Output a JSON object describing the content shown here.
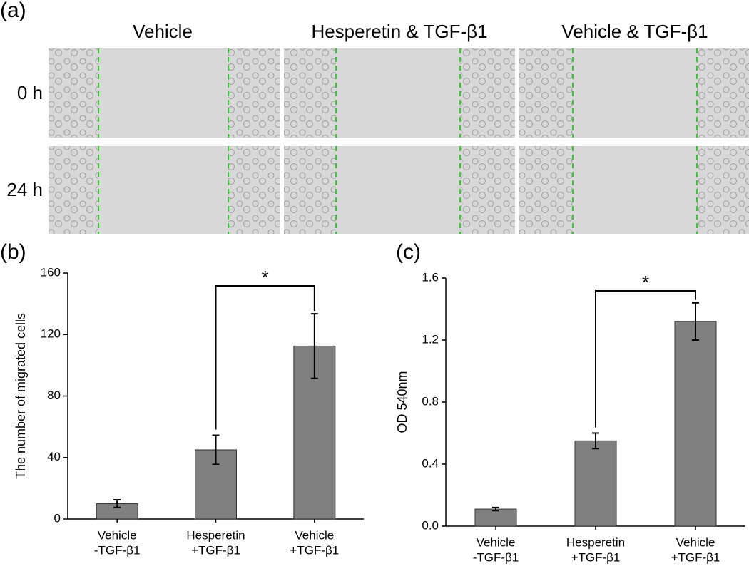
{
  "panel_a": {
    "label": "(a)",
    "columns": [
      "Vehicle",
      "Hesperetin & TGF-β1",
      "Vehicle & TGF-β1"
    ],
    "rows": [
      "0 h",
      "24 h"
    ]
  },
  "chart_data": [
    {
      "type": "bar",
      "panel_label": "(b)",
      "y_label": "The number of migrated cells",
      "categories": [
        [
          "Vehicle",
          "-TGF-β1"
        ],
        [
          "Hesperetin",
          "+TGF-β1"
        ],
        [
          "Vehicle",
          "+TGF-β1"
        ]
      ],
      "values": [
        10,
        45,
        112.5
      ],
      "errors": [
        2.5,
        9.5,
        21
      ],
      "color": "#808080",
      "ylim": [
        0,
        160
      ],
      "yticks": [
        0,
        40,
        80,
        120,
        160
      ],
      "annotation": "*"
    },
    {
      "type": "bar",
      "panel_label": "(c)",
      "y_label": "OD 540nm",
      "categories": [
        [
          "Vehicle",
          "-TGF-β1"
        ],
        [
          "Hesperetin",
          "+TGF-β1"
        ],
        [
          "Vehicle",
          "+TGF-β1"
        ]
      ],
      "values": [
        0.11,
        0.55,
        1.32
      ],
      "errors": [
        0.01,
        0.05,
        0.12
      ],
      "color": "#808080",
      "ylim": [
        0,
        1.6
      ],
      "yticks": [
        {
          "value": 0,
          "label": "0.0"
        },
        0.4,
        0.8,
        1.2,
        1.6
      ],
      "annotation": "*"
    }
  ]
}
